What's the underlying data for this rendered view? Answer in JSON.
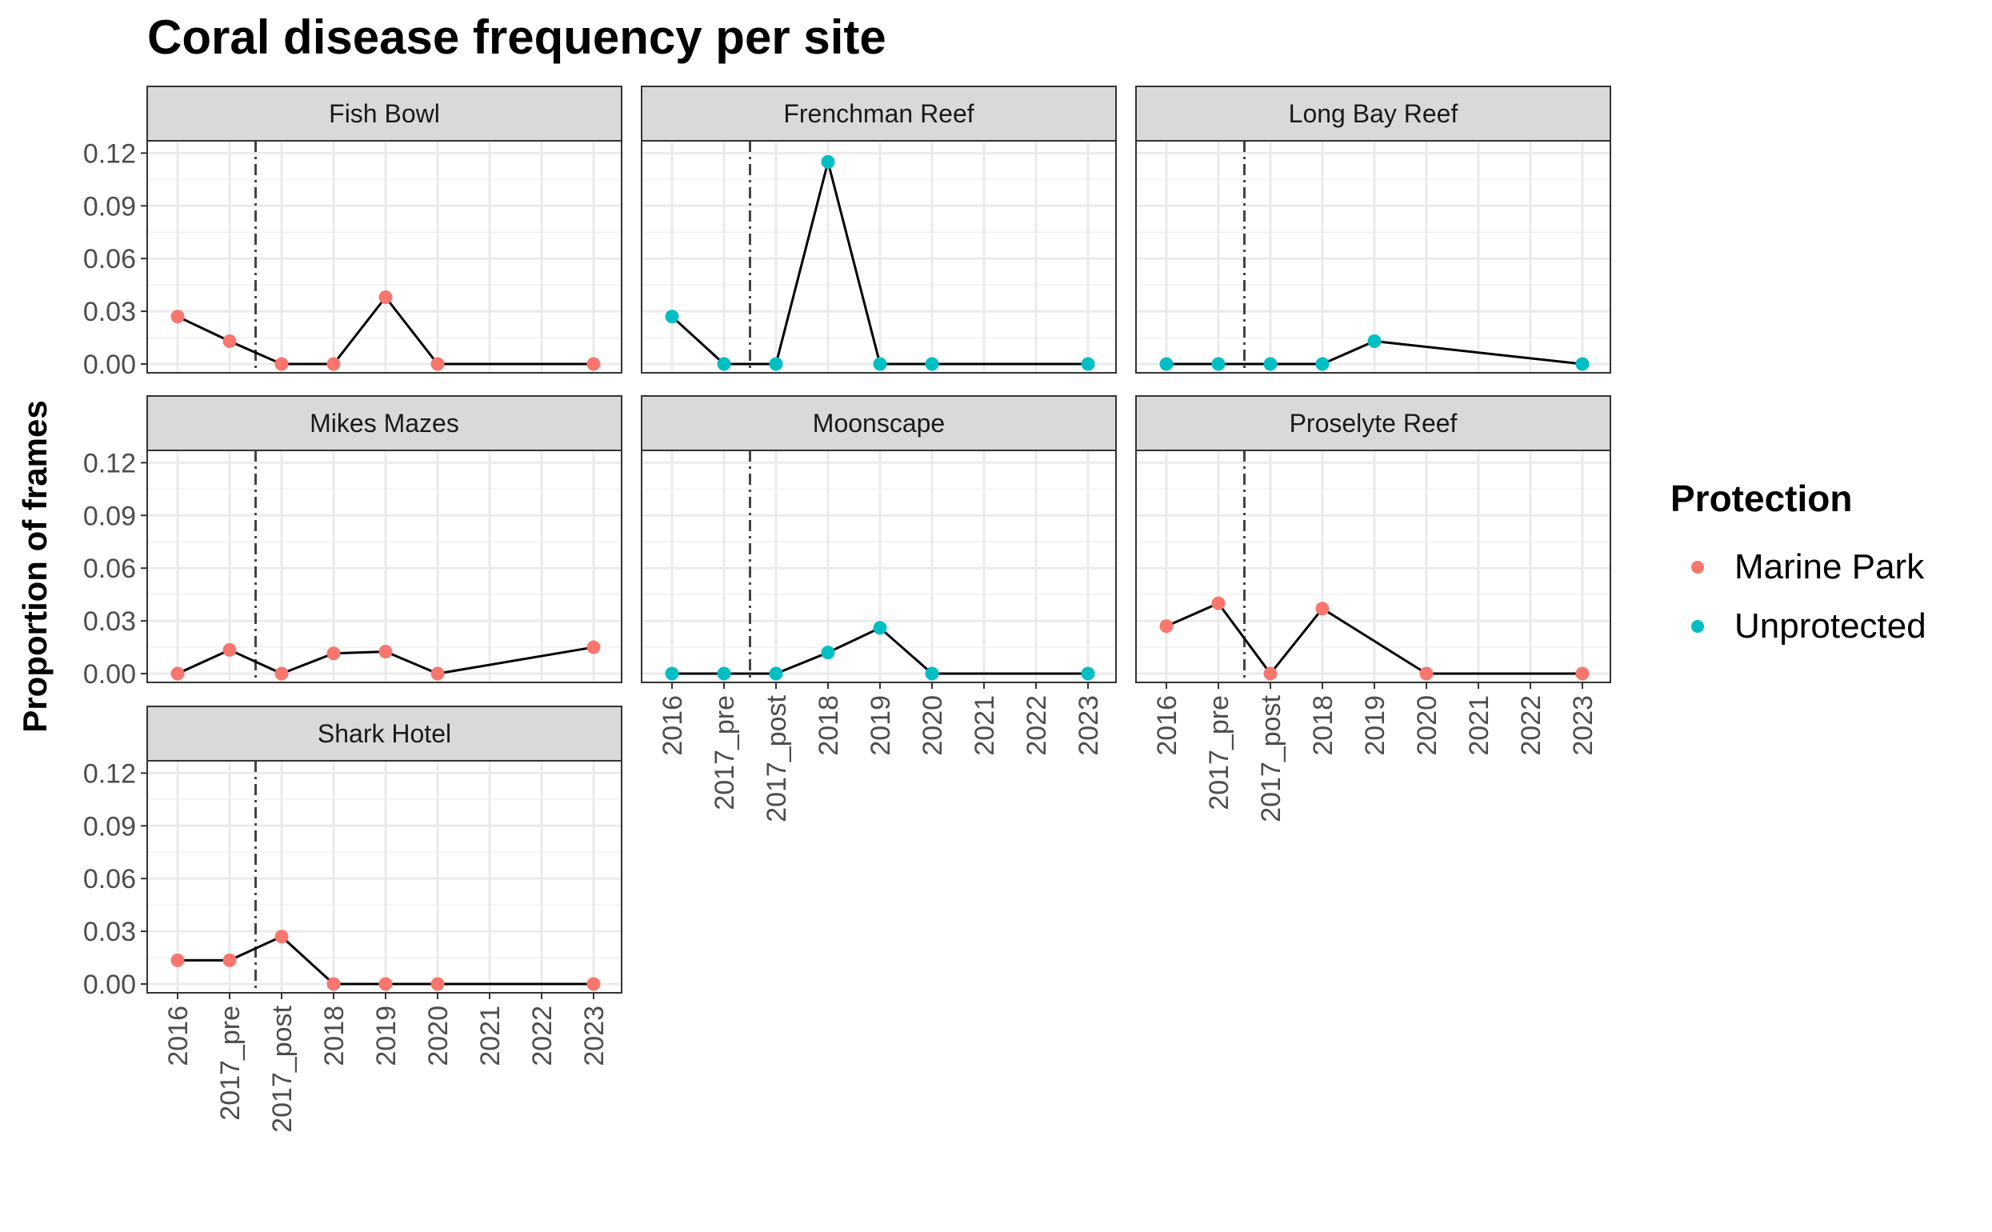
{
  "chart_data": {
    "type": "line",
    "title": "Coral disease frequency per site",
    "ylabel": "Proportion of frames",
    "xlabel": "",
    "x_categories": [
      "2016",
      "2017_pre",
      "2017_post",
      "2018",
      "2019",
      "2020",
      "2021",
      "2022",
      "2023"
    ],
    "y_ticks": [
      "0.00",
      "0.03",
      "0.06",
      "0.09",
      "0.12"
    ],
    "ylim": [
      -0.005,
      0.127
    ],
    "grid": true,
    "vertical_reference_line": {
      "between": [
        "2017_pre",
        "2017_post"
      ],
      "style": "dash-dot"
    },
    "legend": {
      "title": "Protection",
      "position": "right",
      "entries": [
        {
          "label": "Marine Park",
          "color": "#F8766D"
        },
        {
          "label": "Unprotected",
          "color": "#00BFC4"
        }
      ]
    },
    "facets": [
      {
        "name": "Fish Bowl",
        "protection": "Marine Park",
        "points": [
          [
            "2016",
            0.027
          ],
          [
            "2017_pre",
            0.013
          ],
          [
            "2017_post",
            0.0
          ],
          [
            "2018",
            0.0
          ],
          [
            "2019",
            0.038
          ],
          [
            "2020",
            0.0
          ],
          [
            "2023",
            0.0
          ]
        ]
      },
      {
        "name": "Frenchman Reef",
        "protection": "Unprotected",
        "points": [
          [
            "2016",
            0.027
          ],
          [
            "2017_pre",
            0.0
          ],
          [
            "2017_post",
            0.0
          ],
          [
            "2018",
            0.115
          ],
          [
            "2019",
            0.0
          ],
          [
            "2020",
            0.0
          ],
          [
            "2023",
            0.0
          ]
        ]
      },
      {
        "name": "Long Bay Reef",
        "protection": "Unprotected",
        "points": [
          [
            "2016",
            0.0
          ],
          [
            "2017_pre",
            0.0
          ],
          [
            "2017_post",
            0.0
          ],
          [
            "2018",
            0.0
          ],
          [
            "2019",
            0.013
          ],
          [
            "2023",
            0.0
          ]
        ]
      },
      {
        "name": "Mikes Mazes",
        "protection": "Marine Park",
        "points": [
          [
            "2016",
            0.0
          ],
          [
            "2017_pre",
            0.0135
          ],
          [
            "2017_post",
            0.0
          ],
          [
            "2018",
            0.0115
          ],
          [
            "2019",
            0.0125
          ],
          [
            "2020",
            0.0
          ],
          [
            "2023",
            0.015
          ]
        ]
      },
      {
        "name": "Moonscape",
        "protection": "Unprotected",
        "points": [
          [
            "2016",
            0.0
          ],
          [
            "2017_pre",
            0.0
          ],
          [
            "2017_post",
            0.0
          ],
          [
            "2018",
            0.012
          ],
          [
            "2019",
            0.026
          ],
          [
            "2020",
            0.0
          ],
          [
            "2023",
            0.0
          ]
        ]
      },
      {
        "name": "Proselyte Reef",
        "protection": "Marine Park",
        "points": [
          [
            "2016",
            0.027
          ],
          [
            "2017_pre",
            0.04
          ],
          [
            "2017_post",
            0.0
          ],
          [
            "2018",
            0.037
          ],
          [
            "2020",
            0.0
          ],
          [
            "2023",
            0.0
          ]
        ]
      },
      {
        "name": "Shark Hotel",
        "protection": "Marine Park",
        "points": [
          [
            "2016",
            0.0135
          ],
          [
            "2017_pre",
            0.0135
          ],
          [
            "2017_post",
            0.027
          ],
          [
            "2018",
            0.0
          ],
          [
            "2019",
            0.0
          ],
          [
            "2020",
            0.0
          ],
          [
            "2023",
            0.0
          ]
        ]
      }
    ]
  }
}
